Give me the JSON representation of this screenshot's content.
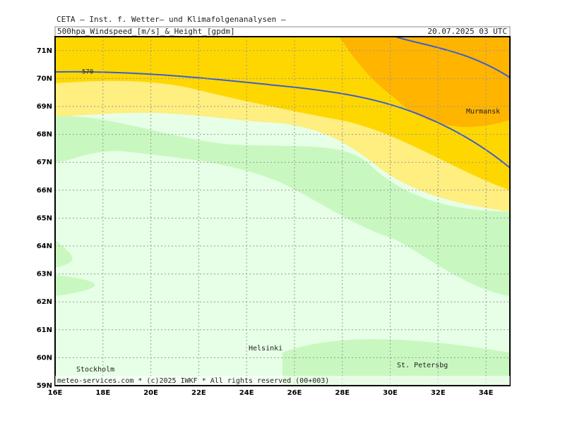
{
  "header": {
    "institute": "CETA — Inst. f. Wetter— und Klimafolgenanalysen —",
    "title": "500hpa_Windspeed_[m/s]_&_Height_[gpdm]",
    "date": "20.07.2025 03 UTC"
  },
  "map": {
    "xlim": [
      16,
      35
    ],
    "ylim": [
      59,
      71.5
    ],
    "xticks": [
      {
        "value": 16,
        "label": "16E"
      },
      {
        "value": 18,
        "label": "18E"
      },
      {
        "value": 20,
        "label": "20E"
      },
      {
        "value": 22,
        "label": "22E"
      },
      {
        "value": 24,
        "label": "24E"
      },
      {
        "value": 26,
        "label": "26E"
      },
      {
        "value": 28,
        "label": "28E"
      },
      {
        "value": 30,
        "label": "30E"
      },
      {
        "value": 32,
        "label": "32E"
      },
      {
        "value": 34,
        "label": "34E"
      }
    ],
    "yticks": [
      {
        "value": 59,
        "label": "59N"
      },
      {
        "value": 60,
        "label": "60N"
      },
      {
        "value": 61,
        "label": "61N"
      },
      {
        "value": 62,
        "label": "62N"
      },
      {
        "value": 63,
        "label": "63N"
      },
      {
        "value": 64,
        "label": "64N"
      },
      {
        "value": 65,
        "label": "65N"
      },
      {
        "value": 66,
        "label": "66N"
      },
      {
        "value": 67,
        "label": "67N"
      },
      {
        "value": 68,
        "label": "68N"
      },
      {
        "value": 69,
        "label": "69N"
      },
      {
        "value": 70,
        "label": "70N"
      },
      {
        "value": 71,
        "label": "71N"
      }
    ],
    "contour_label": "570",
    "cities": [
      "Murmansk",
      "Helsinki",
      "Stockholm",
      "St. Petersbg"
    ]
  },
  "footer": "meteo-services.com * (c)2025 IWKF * All rights reserved (00+003)"
}
